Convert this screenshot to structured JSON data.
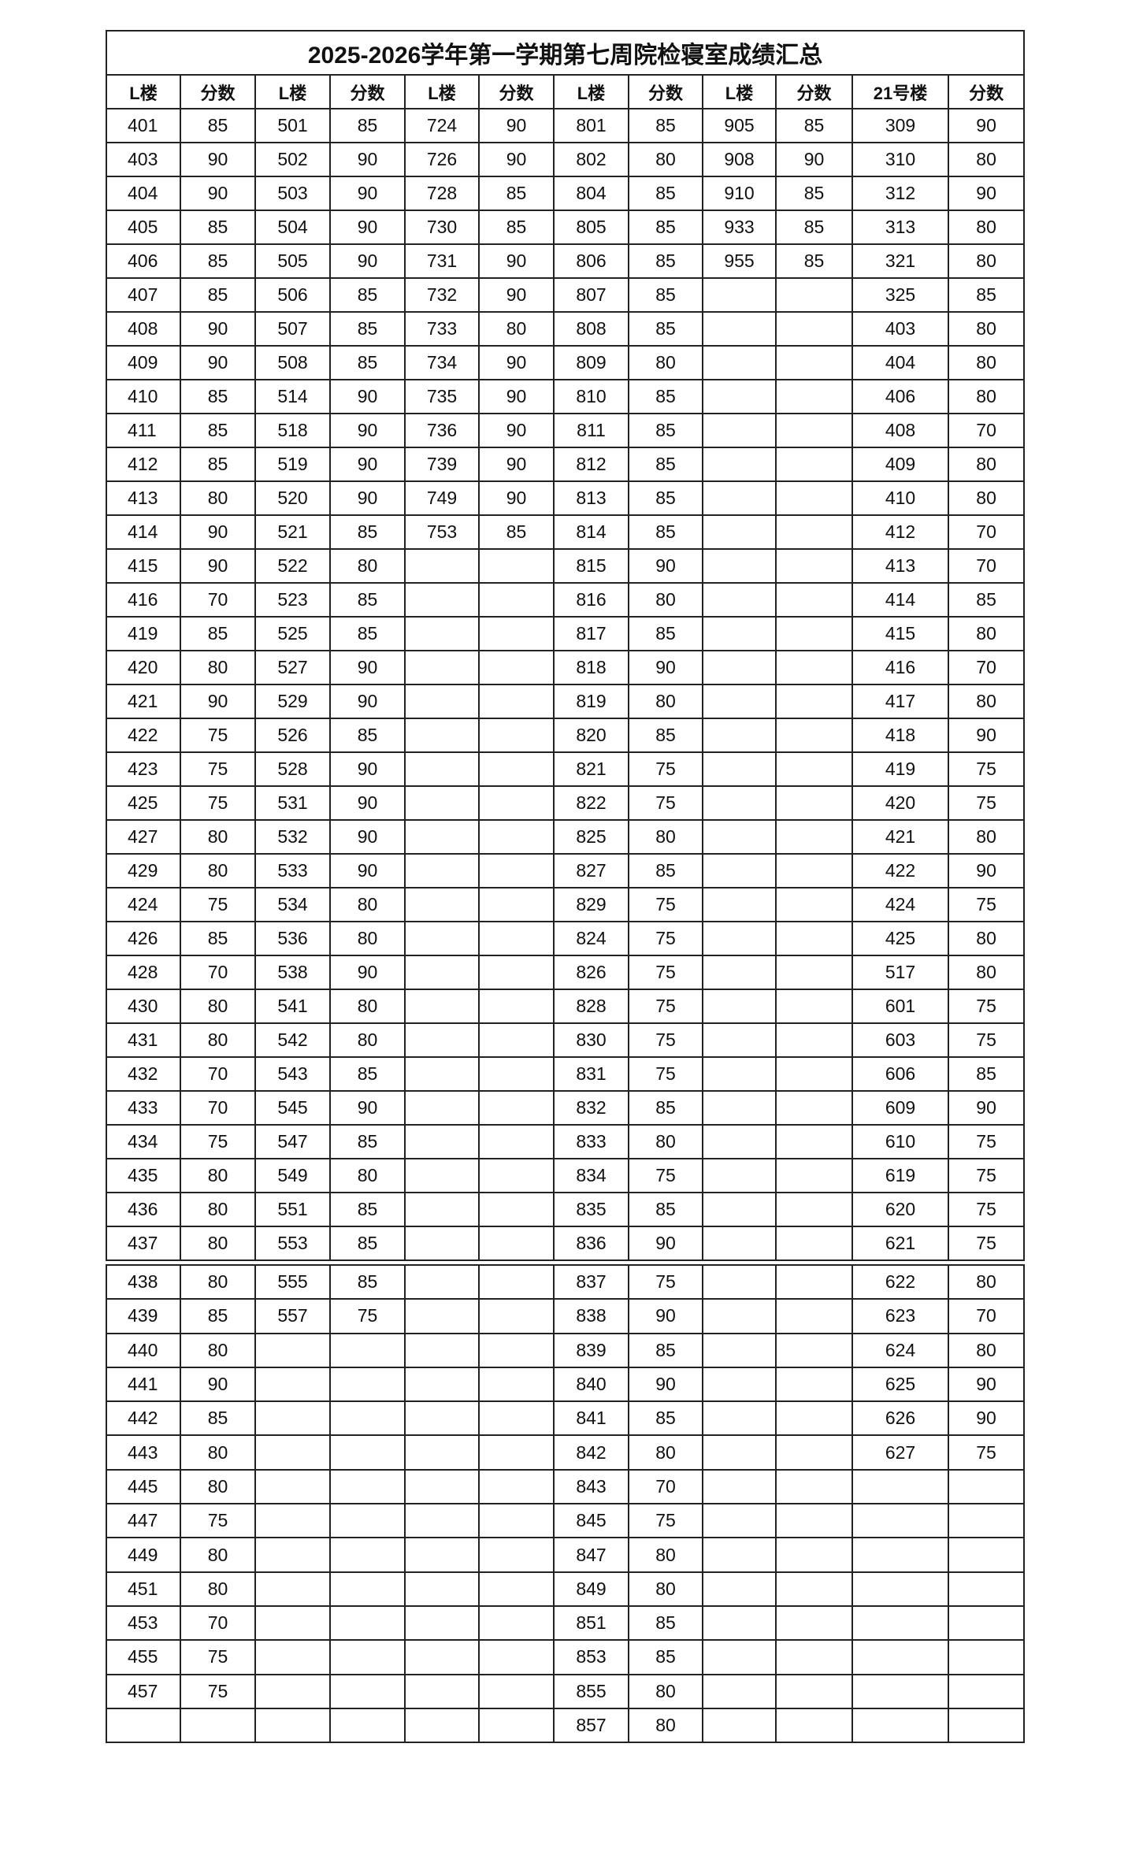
{
  "title": "2025-2026学年第一学期第七周院检寝室成绩汇总",
  "headers": [
    "L楼",
    "分数",
    "L楼",
    "分数",
    "L楼",
    "分数",
    "L楼",
    "分数",
    "L楼",
    "分数",
    "21号楼",
    "分数"
  ],
  "rows_part1": [
    [
      "401",
      "85",
      "501",
      "85",
      "724",
      "90",
      "801",
      "85",
      "905",
      "85",
      "309",
      "90"
    ],
    [
      "403",
      "90",
      "502",
      "90",
      "726",
      "90",
      "802",
      "80",
      "908",
      "90",
      "310",
      "80"
    ],
    [
      "404",
      "90",
      "503",
      "90",
      "728",
      "85",
      "804",
      "85",
      "910",
      "85",
      "312",
      "90"
    ],
    [
      "405",
      "85",
      "504",
      "90",
      "730",
      "85",
      "805",
      "85",
      "933",
      "85",
      "313",
      "80"
    ],
    [
      "406",
      "85",
      "505",
      "90",
      "731",
      "90",
      "806",
      "85",
      "955",
      "85",
      "321",
      "80"
    ],
    [
      "407",
      "85",
      "506",
      "85",
      "732",
      "90",
      "807",
      "85",
      "",
      "",
      "325",
      "85"
    ],
    [
      "408",
      "90",
      "507",
      "85",
      "733",
      "80",
      "808",
      "85",
      "",
      "",
      "403",
      "80"
    ],
    [
      "409",
      "90",
      "508",
      "85",
      "734",
      "90",
      "809",
      "80",
      "",
      "",
      "404",
      "80"
    ],
    [
      "410",
      "85",
      "514",
      "90",
      "735",
      "90",
      "810",
      "85",
      "",
      "",
      "406",
      "80"
    ],
    [
      "411",
      "85",
      "518",
      "90",
      "736",
      "90",
      "811",
      "85",
      "",
      "",
      "408",
      "70"
    ],
    [
      "412",
      "85",
      "519",
      "90",
      "739",
      "90",
      "812",
      "85",
      "",
      "",
      "409",
      "80"
    ],
    [
      "413",
      "80",
      "520",
      "90",
      "749",
      "90",
      "813",
      "85",
      "",
      "",
      "410",
      "80"
    ],
    [
      "414",
      "90",
      "521",
      "85",
      "753",
      "85",
      "814",
      "85",
      "",
      "",
      "412",
      "70"
    ],
    [
      "415",
      "90",
      "522",
      "80",
      "",
      "",
      "815",
      "90",
      "",
      "",
      "413",
      "70"
    ],
    [
      "416",
      "70",
      "523",
      "85",
      "",
      "",
      "816",
      "80",
      "",
      "",
      "414",
      "85"
    ],
    [
      "419",
      "85",
      "525",
      "85",
      "",
      "",
      "817",
      "85",
      "",
      "",
      "415",
      "80"
    ],
    [
      "420",
      "80",
      "527",
      "90",
      "",
      "",
      "818",
      "90",
      "",
      "",
      "416",
      "70"
    ],
    [
      "421",
      "90",
      "529",
      "90",
      "",
      "",
      "819",
      "80",
      "",
      "",
      "417",
      "80"
    ],
    [
      "422",
      "75",
      "526",
      "85",
      "",
      "",
      "820",
      "85",
      "",
      "",
      "418",
      "90"
    ],
    [
      "423",
      "75",
      "528",
      "90",
      "",
      "",
      "821",
      "75",
      "",
      "",
      "419",
      "75"
    ],
    [
      "425",
      "75",
      "531",
      "90",
      "",
      "",
      "822",
      "75",
      "",
      "",
      "420",
      "75"
    ],
    [
      "427",
      "80",
      "532",
      "90",
      "",
      "",
      "825",
      "80",
      "",
      "",
      "421",
      "80"
    ],
    [
      "429",
      "80",
      "533",
      "90",
      "",
      "",
      "827",
      "85",
      "",
      "",
      "422",
      "90"
    ],
    [
      "424",
      "75",
      "534",
      "80",
      "",
      "",
      "829",
      "75",
      "",
      "",
      "424",
      "75"
    ],
    [
      "426",
      "85",
      "536",
      "80",
      "",
      "",
      "824",
      "75",
      "",
      "",
      "425",
      "80"
    ],
    [
      "428",
      "70",
      "538",
      "90",
      "",
      "",
      "826",
      "75",
      "",
      "",
      "517",
      "80"
    ],
    [
      "430",
      "80",
      "541",
      "80",
      "",
      "",
      "828",
      "75",
      "",
      "",
      "601",
      "75"
    ],
    [
      "431",
      "80",
      "542",
      "80",
      "",
      "",
      "830",
      "75",
      "",
      "",
      "603",
      "75"
    ],
    [
      "432",
      "70",
      "543",
      "85",
      "",
      "",
      "831",
      "75",
      "",
      "",
      "606",
      "85"
    ],
    [
      "433",
      "70",
      "545",
      "90",
      "",
      "",
      "832",
      "85",
      "",
      "",
      "609",
      "90"
    ],
    [
      "434",
      "75",
      "547",
      "85",
      "",
      "",
      "833",
      "80",
      "",
      "",
      "610",
      "75"
    ],
    [
      "435",
      "80",
      "549",
      "80",
      "",
      "",
      "834",
      "75",
      "",
      "",
      "619",
      "75"
    ],
    [
      "436",
      "80",
      "551",
      "85",
      "",
      "",
      "835",
      "85",
      "",
      "",
      "620",
      "75"
    ],
    [
      "437",
      "80",
      "553",
      "85",
      "",
      "",
      "836",
      "90",
      "",
      "",
      "621",
      "75"
    ]
  ],
  "rows_part2": [
    [
      "438",
      "80",
      "555",
      "85",
      "",
      "",
      "837",
      "75",
      "",
      "",
      "622",
      "80"
    ],
    [
      "439",
      "85",
      "557",
      "75",
      "",
      "",
      "838",
      "90",
      "",
      "",
      "623",
      "70"
    ],
    [
      "440",
      "80",
      "",
      "",
      "",
      "",
      "839",
      "85",
      "",
      "",
      "624",
      "80"
    ],
    [
      "441",
      "90",
      "",
      "",
      "",
      "",
      "840",
      "90",
      "",
      "",
      "625",
      "90"
    ],
    [
      "442",
      "85",
      "",
      "",
      "",
      "",
      "841",
      "85",
      "",
      "",
      "626",
      "90"
    ],
    [
      "443",
      "80",
      "",
      "",
      "",
      "",
      "842",
      "80",
      "",
      "",
      "627",
      "75"
    ],
    [
      "445",
      "80",
      "",
      "",
      "",
      "",
      "843",
      "70",
      "",
      "",
      "",
      ""
    ],
    [
      "447",
      "75",
      "",
      "",
      "",
      "",
      "845",
      "75",
      "",
      "",
      "",
      ""
    ],
    [
      "449",
      "80",
      "",
      "",
      "",
      "",
      "847",
      "80",
      "",
      "",
      "",
      ""
    ],
    [
      "451",
      "80",
      "",
      "",
      "",
      "",
      "849",
      "80",
      "",
      "",
      "",
      ""
    ],
    [
      "453",
      "70",
      "",
      "",
      "",
      "",
      "851",
      "85",
      "",
      "",
      "",
      ""
    ],
    [
      "455",
      "75",
      "",
      "",
      "",
      "",
      "853",
      "85",
      "",
      "",
      "",
      ""
    ],
    [
      "457",
      "75",
      "",
      "",
      "",
      "",
      "855",
      "80",
      "",
      "",
      "",
      ""
    ],
    [
      "",
      "",
      "",
      "",
      "",
      "",
      "857",
      "80",
      "",
      "",
      "",
      ""
    ]
  ]
}
